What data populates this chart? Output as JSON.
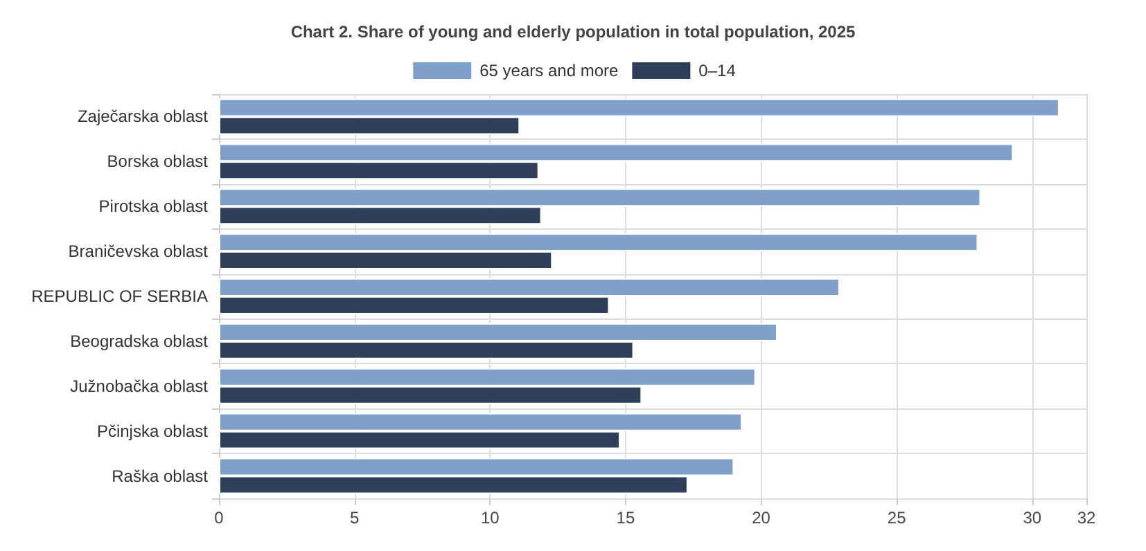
{
  "chart_data": {
    "type": "bar",
    "orientation": "horizontal",
    "title": "Chart 2. Share of young and elderly population in total population, 2025",
    "categories": [
      "Zaječarska oblast",
      "Borska oblast",
      "Pirotska oblast",
      "Braničevska oblast",
      "REPUBLIC OF SERBIA",
      "Beogradska oblast",
      "Južnobačka oblast",
      "Pčinjska oblast",
      "Raška oblast"
    ],
    "series": [
      {
        "name": "65 years and more",
        "color": "#7fa0c8",
        "values": [
          31.0,
          29.3,
          28.1,
          28.0,
          22.9,
          20.6,
          19.8,
          19.3,
          19.0
        ]
      },
      {
        "name": "0–14",
        "color": "#2f3f5a",
        "values": [
          11.1,
          11.8,
          11.9,
          12.3,
          14.4,
          15.3,
          15.6,
          14.8,
          17.3
        ]
      }
    ],
    "xlim": [
      0,
      32
    ],
    "xticks": [
      0,
      5,
      10,
      15,
      20,
      25,
      30,
      32
    ],
    "grid": true,
    "legend": "top"
  }
}
